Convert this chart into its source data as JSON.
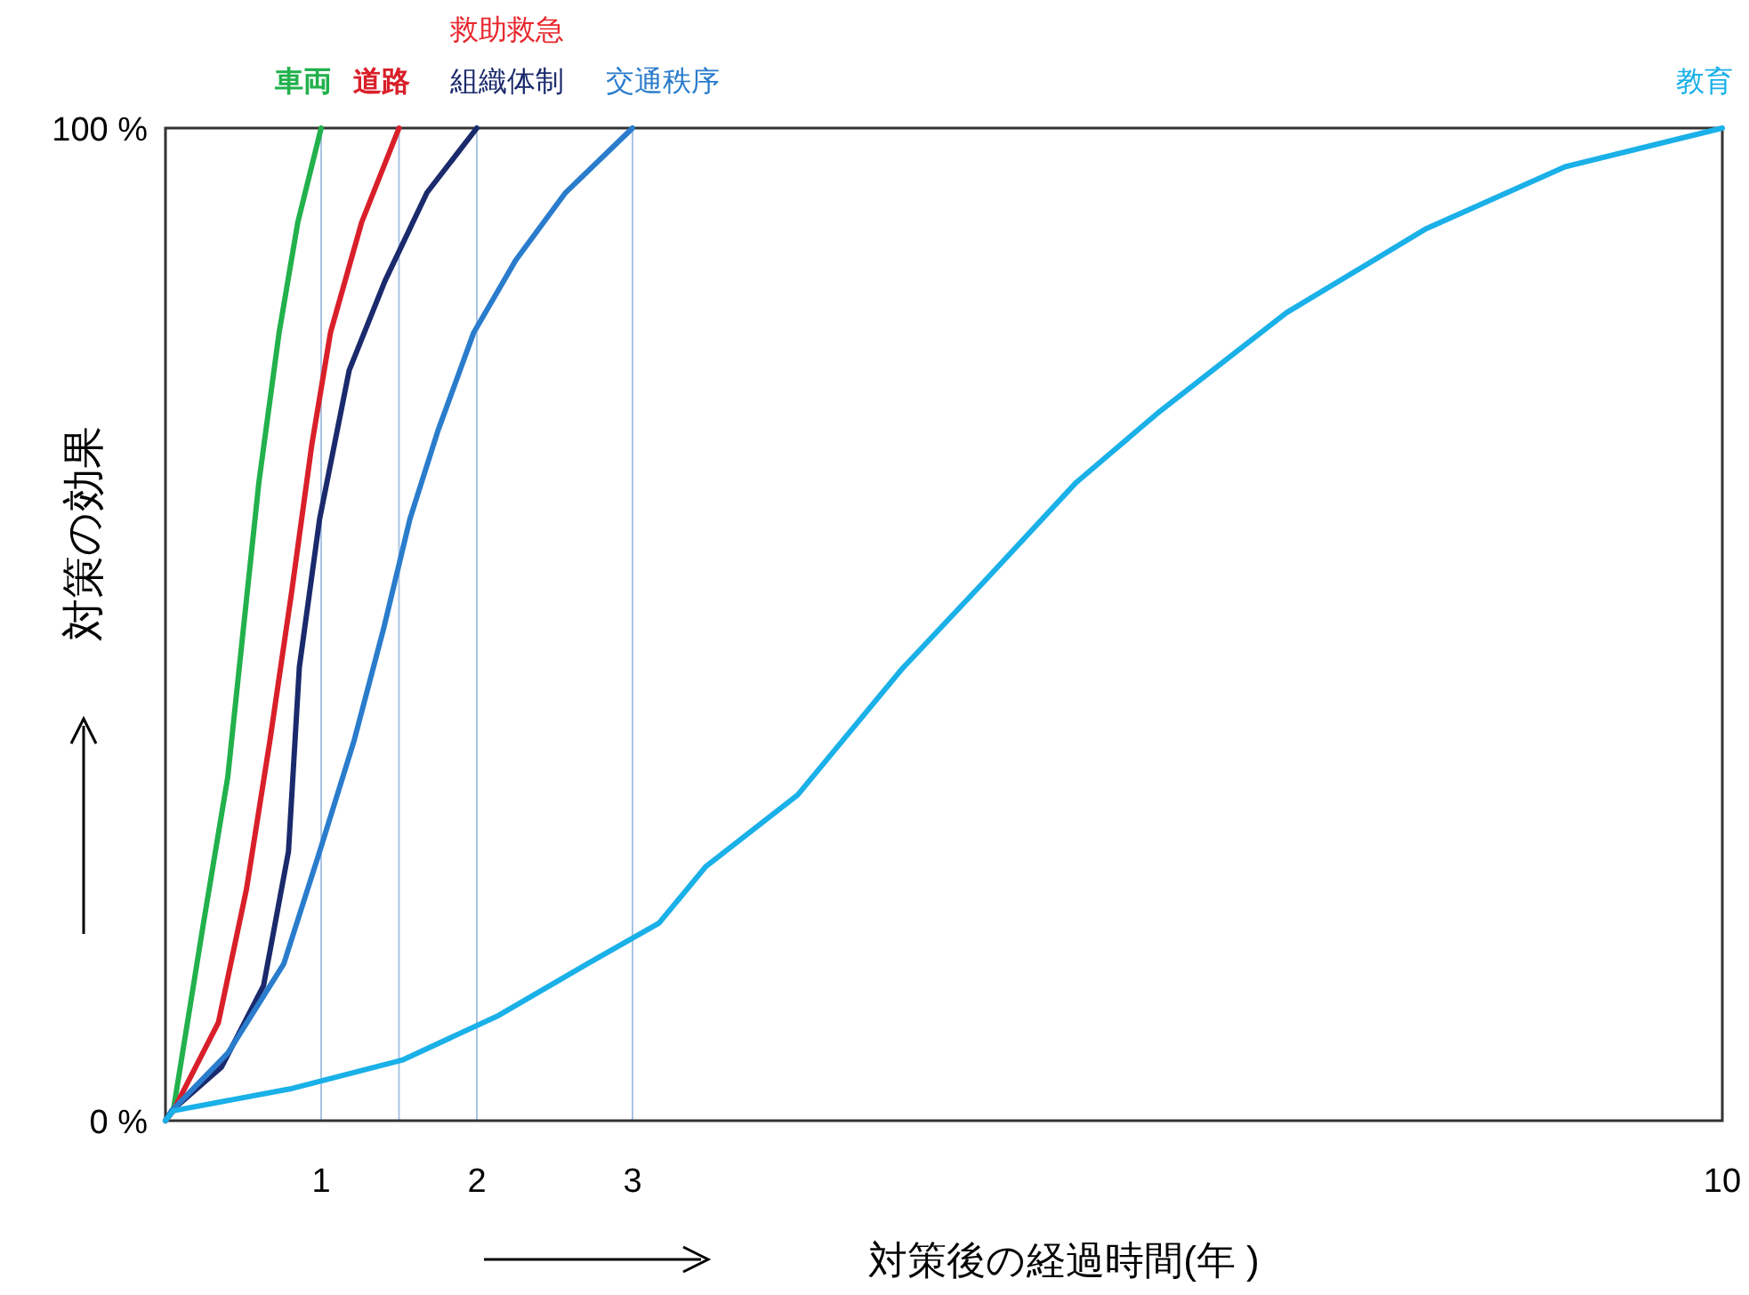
{
  "chart_data": {
    "type": "line",
    "xlabel": "対策後の経過時間(年 )",
    "ylabel": "対策の効果",
    "xlim": [
      0,
      10
    ],
    "ylim": [
      0,
      100
    ],
    "xticks": [
      1,
      2,
      3,
      10
    ],
    "yticks": [
      {
        "value": 0,
        "label": "0 %"
      },
      {
        "value": 100,
        "label": "100 %"
      }
    ],
    "marker": "none",
    "line_style": "solid",
    "series": [
      {
        "name": "車両",
        "color": "#22b14c",
        "x": [
          0,
          0.05,
          0.24,
          0.4,
          0.5,
          0.6,
          0.73,
          0.85,
          1
        ],
        "values": [
          0,
          1,
          19.5,
          34.6,
          49.5,
          64.3,
          79.4,
          90.5,
          100
        ]
      },
      {
        "name": "道路",
        "color": "#d9202a",
        "x": [
          0,
          0.05,
          0.34,
          0.52,
          0.67,
          0.81,
          0.94,
          1.06,
          1.26,
          1.5
        ],
        "values": [
          0,
          1,
          9.9,
          23.3,
          38.2,
          53.2,
          68.1,
          79.4,
          90.5,
          100
        ]
      },
      {
        "name": "組織体制",
        "color": "#1a2a6c",
        "x": [
          0,
          0.04,
          0.36,
          0.63,
          0.79,
          0.86,
          0.99,
          1.18,
          1.41,
          1.68,
          2
        ],
        "values": [
          0,
          1,
          5.4,
          13.6,
          27.1,
          45.7,
          60.6,
          75.6,
          84.6,
          93.5,
          100
        ]
      },
      {
        "name": "交通秩序",
        "color": "#2a7ccc",
        "x": [
          0,
          0.04,
          0.4,
          0.76,
          0.99,
          1.21,
          1.4,
          1.57,
          1.75,
          1.98,
          2.25,
          2.57,
          3
        ],
        "values": [
          0,
          1,
          6.8,
          15.8,
          27.1,
          38.2,
          49.5,
          60.6,
          69.5,
          79.4,
          86.7,
          93.5,
          100
        ]
      },
      {
        "name": "教育",
        "color": "#1ab0e8",
        "x": [
          0,
          0.05,
          0.8,
          1.52,
          2.14,
          2.71,
          3.17,
          3.47,
          4.06,
          4.73,
          5.27,
          5.85,
          6.39,
          7.2,
          8.09,
          8.99,
          10
        ],
        "values": [
          0,
          1,
          3.2,
          6.1,
          10.6,
          15.8,
          19.9,
          25.6,
          32.8,
          45.5,
          54.5,
          64.3,
          71.5,
          81.4,
          89.8,
          96.1,
          100
        ]
      }
    ],
    "ref_lines": [
      {
        "axis": "x",
        "value": 1,
        "color": "#a9c4e4"
      },
      {
        "axis": "x",
        "value": 1.5,
        "color": "#a9c4e4"
      },
      {
        "axis": "x",
        "value": 2,
        "color": "#a9c4e4"
      },
      {
        "axis": "x",
        "value": 3,
        "color": "#a9c4e4"
      }
    ],
    "annotations": [
      {
        "text": "救助救急",
        "x": 2,
        "y": 100
      }
    ]
  }
}
